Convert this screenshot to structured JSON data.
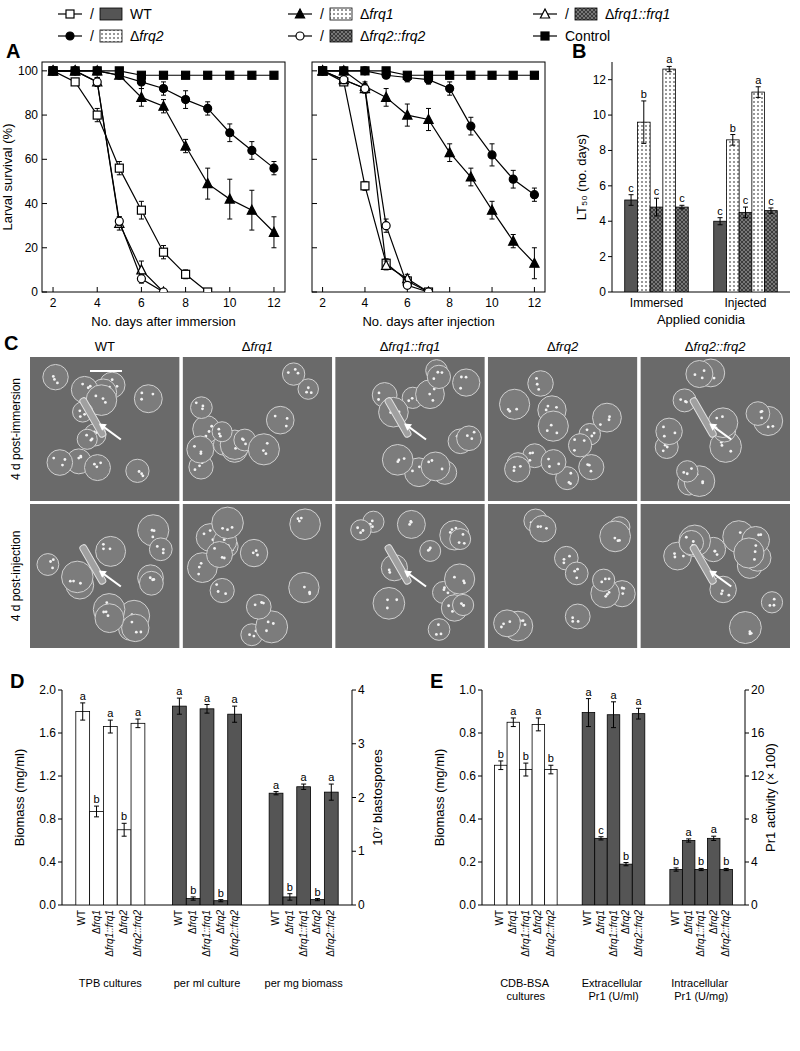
{
  "legend_separator": "/",
  "chart_data": [
    {
      "type": "line",
      "title": "A",
      "x": [
        2,
        3,
        4,
        5,
        6,
        7,
        8,
        9,
        10,
        11,
        12
      ],
      "xlim": [
        1.5,
        12.5
      ],
      "xticks": [
        2,
        4,
        6,
        8,
        10,
        12
      ],
      "ylim": [
        0,
        104
      ],
      "yticks": [
        0,
        20,
        40,
        60,
        80,
        100
      ],
      "x_label": "No. days after immersion",
      "y_label": "Larval survival (%)",
      "series": [
        {
          "name": "WT",
          "color": "#000000",
          "marker": "square-open",
          "values": [
            100,
            95,
            80,
            56,
            37,
            18,
            8,
            0,
            null,
            null,
            null
          ],
          "errors": [
            0,
            1,
            3,
            3,
            4,
            3,
            2,
            0,
            null,
            null,
            null
          ]
        },
        {
          "name": "Δfrq1",
          "color": "#000000",
          "marker": "triangle",
          "values": [
            100,
            100,
            100,
            98,
            88,
            84,
            66,
            49,
            42,
            37,
            27
          ],
          "errors": [
            0,
            0,
            0,
            1,
            4,
            3,
            3,
            7,
            9,
            9,
            7
          ]
        },
        {
          "name": "Δfrq1::frq1",
          "color": "#000000",
          "marker": "triangle-open",
          "values": [
            100,
            100,
            95,
            31,
            10,
            0,
            null,
            null,
            null,
            null,
            null
          ],
          "errors": [
            0,
            0,
            2,
            3,
            4,
            0,
            null,
            null,
            null,
            null,
            null
          ]
        },
        {
          "name": "Δfrq2",
          "color": "#000000",
          "marker": "circle",
          "values": [
            100,
            100,
            100,
            98,
            95,
            92,
            87,
            83,
            72,
            64,
            56
          ],
          "errors": [
            0,
            0,
            0,
            1,
            3,
            3,
            4,
            3,
            4,
            4,
            3
          ]
        },
        {
          "name": "Δfrq2::frq2",
          "color": "#000000",
          "marker": "circle-open",
          "values": [
            100,
            100,
            95,
            32,
            6,
            0,
            null,
            null,
            null,
            null,
            null
          ],
          "errors": [
            0,
            0,
            2,
            2,
            2,
            0,
            null,
            null,
            null,
            null,
            null
          ]
        },
        {
          "name": "Control",
          "color": "#000000",
          "marker": "square",
          "values": [
            100,
            100,
            100,
            100,
            98,
            98,
            98,
            98,
            98,
            98,
            98
          ],
          "errors": [
            0,
            0,
            0,
            0,
            0,
            0,
            0,
            0,
            0,
            0,
            0
          ]
        }
      ]
    },
    {
      "type": "line",
      "tick_labels": "x",
      "x": [
        2,
        3,
        4,
        5,
        6,
        7,
        8,
        9,
        10,
        11,
        12
      ],
      "xlim": [
        1.5,
        12.5
      ],
      "xticks": [
        2,
        4,
        6,
        8,
        10,
        12
      ],
      "ylim": [
        0,
        104
      ],
      "yticks": [
        0,
        20,
        40,
        60,
        80,
        100
      ],
      "x_label": "No. days after injection",
      "series": [
        {
          "name": "WT",
          "color": "#000000",
          "marker": "square-open",
          "values": [
            100,
            95,
            48,
            13,
            5,
            0,
            null,
            null,
            null,
            null,
            null
          ],
          "errors": [
            0,
            1,
            2,
            2,
            2,
            0,
            null,
            null,
            null,
            null,
            null
          ]
        },
        {
          "name": "Δfrq1",
          "color": "#000000",
          "marker": "triangle",
          "values": [
            100,
            100,
            93,
            88,
            80,
            78,
            63,
            52,
            37,
            23,
            13
          ],
          "errors": [
            0,
            0,
            2,
            4,
            5,
            5,
            4,
            4,
            4,
            3,
            7
          ]
        },
        {
          "name": "Δfrq1::frq1",
          "color": "#000000",
          "marker": "triangle-open",
          "values": [
            100,
            96,
            92,
            12,
            6,
            0,
            null,
            null,
            null,
            null,
            null
          ],
          "errors": [
            0,
            1,
            2,
            2,
            2,
            0,
            null,
            null,
            null,
            null,
            null
          ]
        },
        {
          "name": "Δfrq2",
          "color": "#000000",
          "marker": "circle",
          "values": [
            100,
            100,
            100,
            98,
            97,
            96,
            92,
            75,
            62,
            51,
            44
          ],
          "errors": [
            0,
            0,
            0,
            1,
            2,
            2,
            3,
            4,
            5,
            4,
            3
          ]
        },
        {
          "name": "Δfrq2::frq2",
          "color": "#000000",
          "marker": "circle-open",
          "values": [
            100,
            96,
            92,
            30,
            3,
            0,
            null,
            null,
            null,
            null,
            null
          ],
          "errors": [
            0,
            1,
            2,
            3,
            1,
            0,
            null,
            null,
            null,
            null,
            null
          ]
        },
        {
          "name": "Control",
          "color": "#000000",
          "marker": "square",
          "values": [
            100,
            100,
            100,
            100,
            98,
            98,
            98,
            98,
            98,
            98,
            98
          ],
          "errors": [
            0,
            0,
            0,
            0,
            0,
            0,
            0,
            0,
            0,
            0,
            0
          ]
        }
      ]
    },
    {
      "type": "bar",
      "title": "B",
      "categories": [
        "Immersed",
        "Injected"
      ],
      "x_label": "Applied conidia",
      "y_label": "LT₅₀ (no. days)",
      "ylim": [
        0,
        13
      ],
      "yticks": [
        0,
        2,
        4,
        6,
        8,
        10,
        12
      ],
      "series": [
        {
          "name": "WT",
          "color": "#555555",
          "values": [
            5.2,
            4.0
          ],
          "errors": [
            0.3,
            0.2
          ],
          "letters": [
            "c",
            "c"
          ]
        },
        {
          "name": "Δfrq1",
          "color": "#ffffff",
          "values": [
            9.6,
            8.6
          ],
          "errors": [
            1.2,
            0.3
          ],
          "letters": [
            "b",
            "b"
          ]
        },
        {
          "name": "Δfrq1::frq1",
          "color": "#777777",
          "values": [
            4.8,
            4.5
          ],
          "errors": [
            0.5,
            0.3
          ],
          "letters": [
            "c",
            "c"
          ]
        },
        {
          "name": "Δfrq2",
          "color": "#ffffff",
          "values": [
            12.6,
            11.3
          ],
          "errors": [
            0.15,
            0.3
          ],
          "letters": [
            "a",
            "a"
          ]
        },
        {
          "name": "Δfrq2::frq2",
          "color": "#777777",
          "values": [
            4.8,
            4.6
          ],
          "errors": [
            0.1,
            0.15
          ],
          "letters": [
            "c",
            "c"
          ]
        }
      ]
    },
    {
      "type": "bar",
      "title": "D",
      "categories": [
        "WT",
        "Δfrq1",
        "Δfrq1::frq1",
        "Δfrq2",
        "Δfrq2::frq2"
      ],
      "y_label": "Biomass (mg/ml)",
      "y2_label": "10⁷ blastospores",
      "ylim": [
        0,
        2.0
      ],
      "yticks": [
        {
          "value": 0,
          "label": "0.0"
        },
        {
          "value": 0.4,
          "label": "0.4"
        },
        {
          "value": 0.8,
          "label": "0.8"
        },
        {
          "value": 1.2,
          "label": "1.2"
        },
        {
          "value": 1.6,
          "label": "1.6"
        },
        {
          "value": 2.0,
          "label": "2.0"
        }
      ],
      "y2lim": [
        0,
        4
      ],
      "y2ticks": [
        0,
        1,
        2,
        3,
        4
      ],
      "series": [
        {
          "name": "TPB cultures",
          "color": "#ffffff",
          "values": [
            1.8,
            0.87,
            1.66,
            0.7,
            1.69
          ],
          "errors": [
            0.08,
            0.05,
            0.06,
            0.06,
            0.04
          ],
          "letters": [
            "a",
            "b",
            "a",
            "b",
            "a"
          ]
        },
        {
          "name": "per ml culture",
          "color": "#555555",
          "axis": "y2",
          "values": [
            3.7,
            0.12,
            3.65,
            0.08,
            3.55
          ],
          "errors": [
            0.15,
            0.03,
            0.08,
            0.02,
            0.15
          ],
          "letters": [
            "a",
            "b",
            "a",
            "b",
            "a"
          ]
        },
        {
          "name": "per mg biomass",
          "color": "#555555",
          "axis": "y2",
          "values": [
            2.08,
            0.15,
            2.2,
            0.1,
            2.1
          ],
          "errors": [
            0.03,
            0.06,
            0.05,
            0.02,
            0.15
          ],
          "letters": [
            "a",
            "b",
            "a",
            "b",
            "a"
          ]
        }
      ]
    },
    {
      "type": "bar",
      "title": "E",
      "categories": [
        "WT",
        "Δfrq1",
        "Δfrq1::frq1",
        "Δfrq2",
        "Δfrq2::frq2"
      ],
      "y_label": "Biomass (mg/ml)",
      "y2_label": "Pr1 activity (× 100)",
      "ylim": [
        0,
        1.0
      ],
      "yticks": [
        {
          "value": 0,
          "label": "0.0"
        },
        {
          "value": 0.2,
          "label": "0.2"
        },
        {
          "value": 0.4,
          "label": "0.4"
        },
        {
          "value": 0.6,
          "label": "0.6"
        },
        {
          "value": 0.8,
          "label": "0.8"
        },
        {
          "value": 1.0,
          "label": "1.0"
        }
      ],
      "y2lim": [
        0,
        20
      ],
      "y2ticks": [
        0,
        4,
        8,
        12,
        16,
        20
      ],
      "series": [
        {
          "name": "CDB-BSA cultures",
          "color": "#ffffff",
          "values": [
            0.65,
            0.85,
            0.63,
            0.84,
            0.63
          ],
          "errors": [
            0.02,
            0.02,
            0.03,
            0.03,
            0.02
          ],
          "letters": [
            "b",
            "a",
            "b",
            "a",
            "b"
          ]
        },
        {
          "name": "Extracellular Pr1 (U/ml)",
          "color": "#555555",
          "axis": "y2",
          "values": [
            17.9,
            6.2,
            17.7,
            3.8,
            17.8
          ],
          "errors": [
            1.3,
            0.15,
            1.2,
            0.15,
            0.5
          ],
          "letters": [
            "a",
            "c",
            "a",
            "b",
            "a"
          ]
        },
        {
          "name": "Intracellular Pr1 (U/mg)",
          "color": "#555555",
          "axis": "y2",
          "values": [
            3.3,
            6.0,
            3.3,
            6.2,
            3.3
          ],
          "errors": [
            0.15,
            0.15,
            0.1,
            0.2,
            0.1
          ],
          "letters": [
            "b",
            "a",
            "b",
            "a",
            "b"
          ]
        }
      ]
    }
  ],
  "panel_c": {
    "title": "C",
    "columns": [
      "WT",
      "Δfrq1",
      "Δfrq1::frq1",
      "Δfrq2",
      "Δfrq2::frq2"
    ],
    "rows": [
      "4 d post-immersion",
      "4 d post-injection"
    ],
    "arrows": [
      [
        true,
        false,
        true,
        false,
        true
      ],
      [
        true,
        false,
        true,
        false,
        true
      ]
    ]
  }
}
